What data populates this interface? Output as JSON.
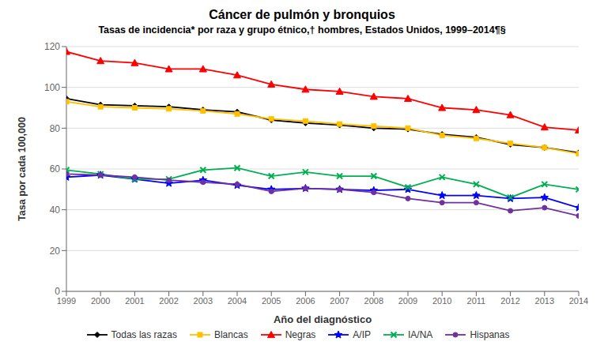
{
  "chart_data": {
    "type": "line",
    "title": "Cáncer de pulmón y bronquios",
    "subtitle": "Tasas de incidencia* por raza y grupo étnico,† hombres, Estados Unidos, 1999–2014¶§",
    "xlabel": "Año del diagnóstico",
    "ylabel": "Tasa por cada 100,000",
    "x": [
      1999,
      2000,
      2001,
      2002,
      2003,
      2004,
      2005,
      2006,
      2007,
      2008,
      2009,
      2010,
      2011,
      2012,
      2013,
      2014
    ],
    "xlim": [
      1999,
      2014
    ],
    "xticks": [
      1999,
      2000,
      2001,
      2002,
      2003,
      2004,
      2005,
      2006,
      2007,
      2008,
      2009,
      2010,
      2011,
      2012,
      2013,
      2014
    ],
    "ylim": [
      0,
      120
    ],
    "yticks": [
      0,
      20,
      40,
      60,
      80,
      100,
      120
    ],
    "grid": true,
    "legend": "bottom",
    "series": [
      {
        "name": "Todas las razas",
        "color": "#000000",
        "marker": "diamond",
        "values": [
          94.5,
          91.5,
          91.0,
          90.5,
          89.0,
          88.0,
          84.0,
          82.5,
          81.5,
          80.0,
          79.5,
          77.0,
          75.5,
          72.0,
          70.5,
          68.0
        ]
      },
      {
        "name": "Blancas",
        "color": "#FFC000",
        "marker": "square",
        "values": [
          93.0,
          90.5,
          90.0,
          89.5,
          88.5,
          87.0,
          84.5,
          83.5,
          82.0,
          81.0,
          80.0,
          76.5,
          75.0,
          72.5,
          70.5,
          67.5
        ]
      },
      {
        "name": "Negras",
        "color": "#FF0000",
        "marker": "triangle",
        "values": [
          117.5,
          113.0,
          112.0,
          109.0,
          109.0,
          106.0,
          101.5,
          99.0,
          98.0,
          95.5,
          94.5,
          90.0,
          89.0,
          86.5,
          80.5,
          79.0
        ]
      },
      {
        "name": "A/IP",
        "color": "#0000FF",
        "marker": "star",
        "values": [
          56.0,
          57.0,
          55.0,
          53.0,
          54.5,
          52.0,
          50.0,
          50.5,
          50.0,
          49.5,
          50.0,
          47.0,
          47.0,
          45.5,
          46.0,
          41.0
        ]
      },
      {
        "name": "IA/NA",
        "color": "#00B050",
        "marker": "x",
        "values": [
          59.5,
          57.5,
          55.0,
          55.0,
          59.5,
          60.5,
          56.5,
          58.5,
          56.5,
          56.5,
          51.0,
          56.0,
          52.5,
          46.0,
          52.5,
          50.0
        ]
      },
      {
        "name": "Hispanas",
        "color": "#7030A0",
        "marker": "circle",
        "values": [
          57.5,
          57.0,
          56.0,
          54.5,
          53.5,
          52.5,
          49.0,
          50.5,
          50.0,
          48.5,
          45.5,
          43.5,
          43.5,
          39.5,
          41.0,
          37.0
        ]
      }
    ]
  }
}
